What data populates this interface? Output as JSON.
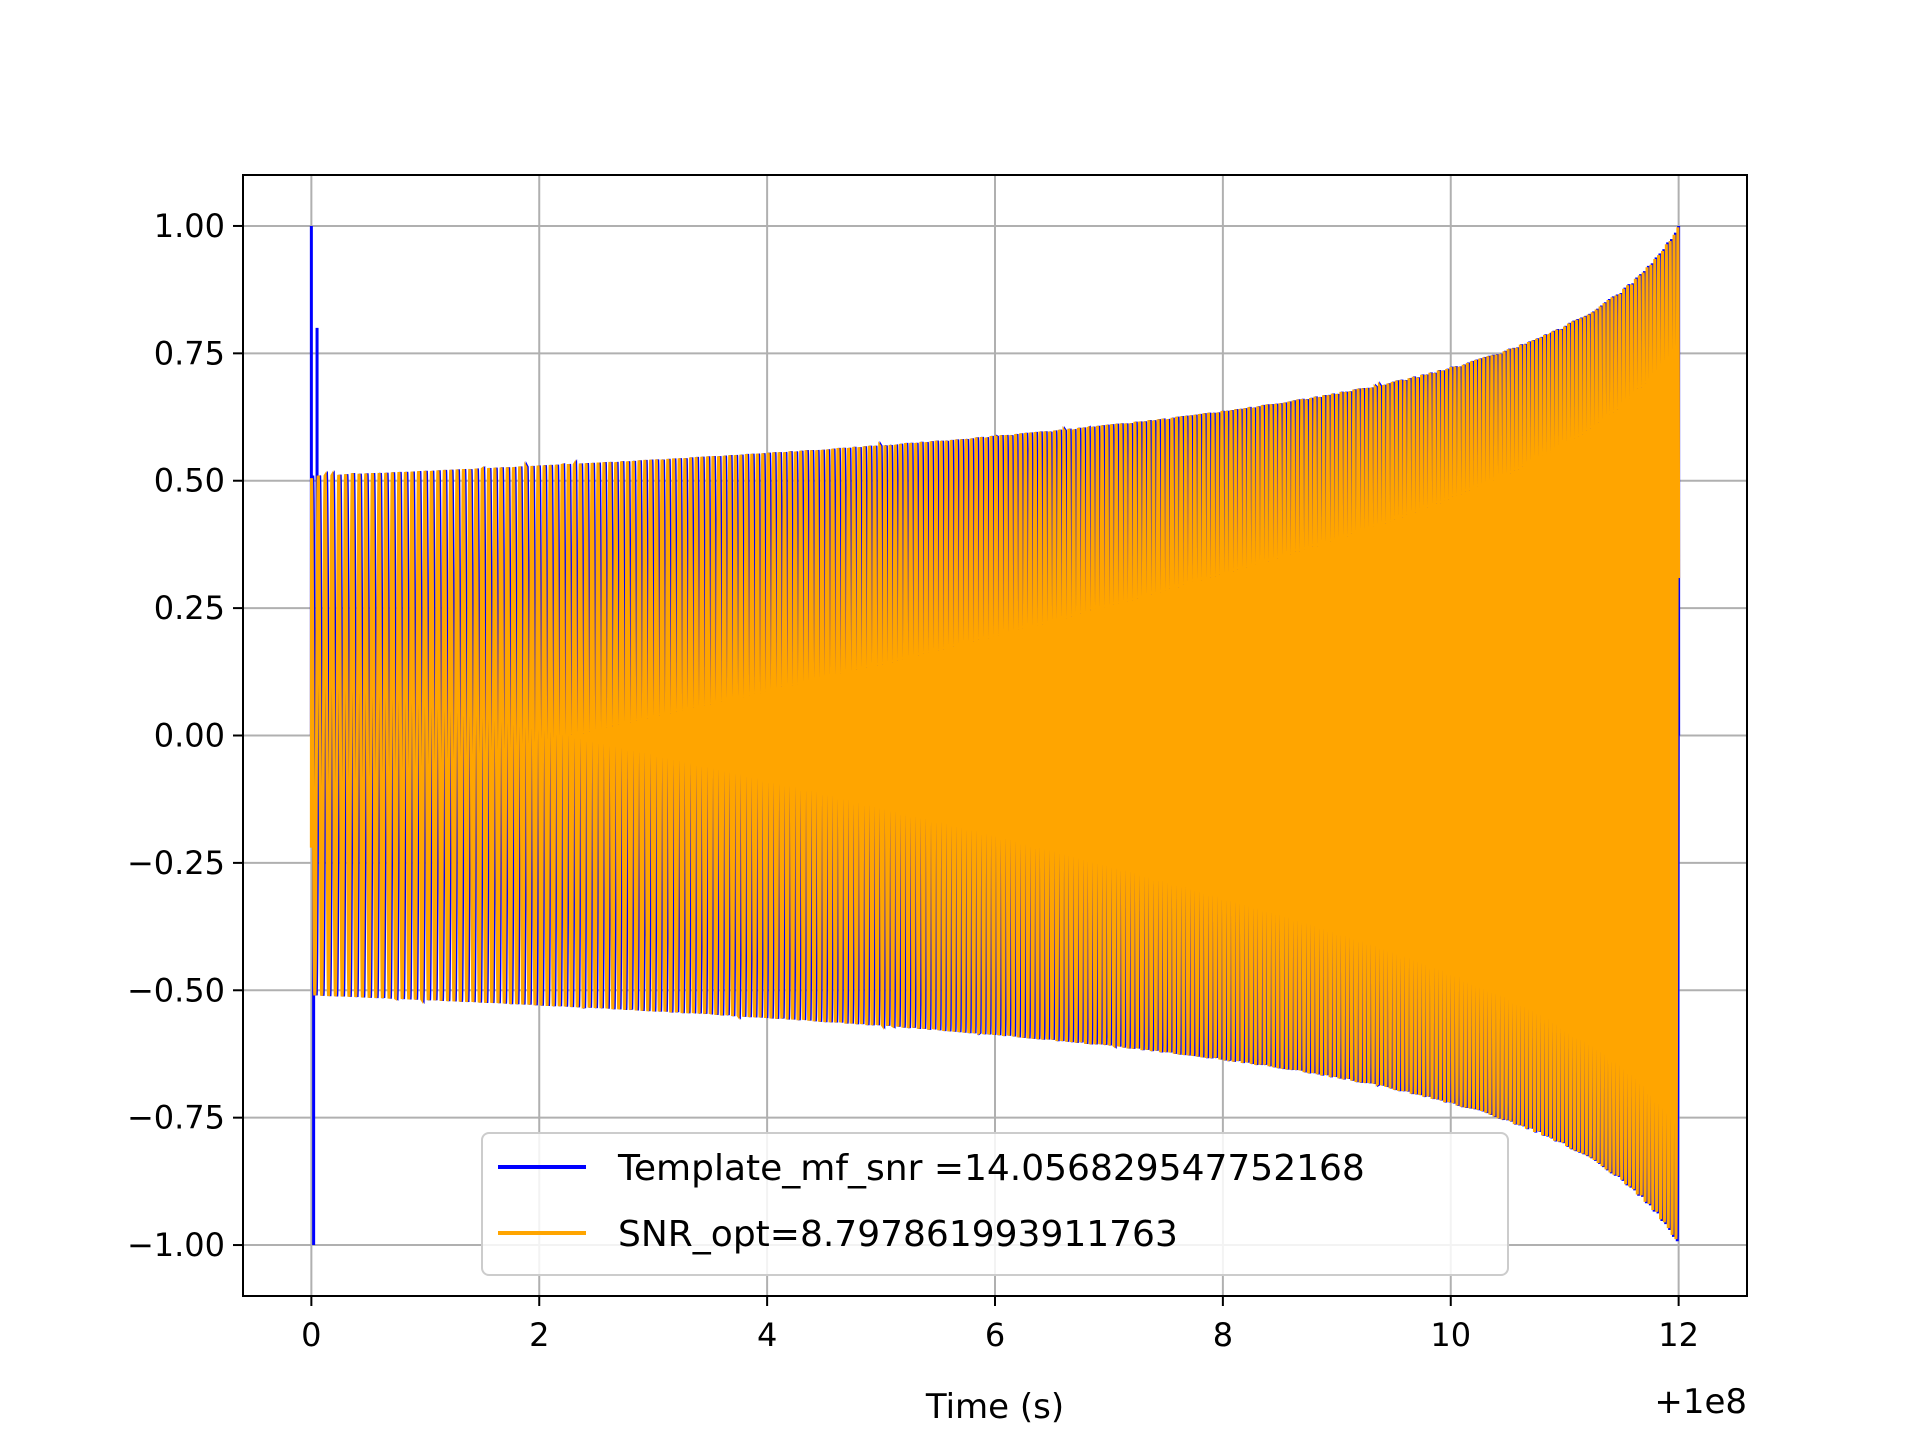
{
  "chart_data": {
    "type": "line",
    "title": "",
    "xlabel": "Time (s)",
    "ylabel": "",
    "x_offset_label": "+1e8",
    "xlim": [
      -0.6,
      12.6
    ],
    "ylim": [
      -1.1,
      1.1
    ],
    "xticks": [
      0,
      2,
      4,
      6,
      8,
      10,
      12
    ],
    "xtick_labels": [
      "0",
      "2",
      "4",
      "6",
      "8",
      "10",
      "12"
    ],
    "yticks": [
      1.0,
      0.75,
      0.5,
      0.25,
      0.0,
      -0.25,
      -0.5,
      -0.75,
      -1.0
    ],
    "ytick_labels": [
      "1.00",
      "0.75",
      "0.50",
      "0.25",
      "0.00",
      "−0.25",
      "−0.50",
      "−0.75",
      "−1.00"
    ],
    "grid": true,
    "legend_position": "lower-center",
    "series": [
      {
        "name": "Template_mf_snr =14.056829547752168",
        "color": "#0000ff",
        "x_range": [
          0,
          12
        ],
        "envelope_start": 0.51,
        "envelope_end": 1.0,
        "spikes": [
          {
            "x": 0.0,
            "y": 1.0
          },
          {
            "x": 0.02,
            "y": -1.0
          },
          {
            "x": 0.05,
            "y": 0.8
          },
          {
            "x": 12.0,
            "y": 1.0
          },
          {
            "x": 12.0,
            "y": 0.8
          }
        ]
      },
      {
        "name": "SNR_opt=8.797861993911763",
        "color": "#ffa500",
        "x_range": [
          0,
          12
        ],
        "envelope_start": 0.51,
        "envelope_end": 1.0,
        "start_value": -0.22
      }
    ]
  }
}
